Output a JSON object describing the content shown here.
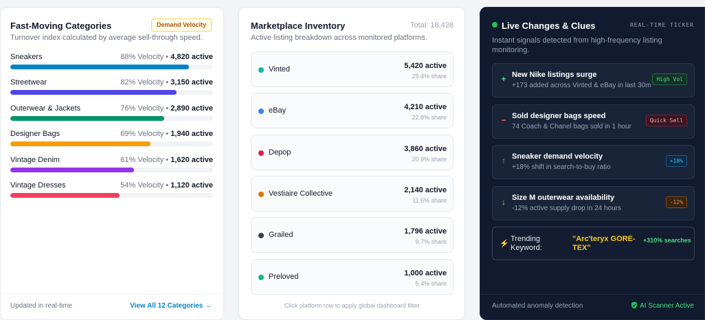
{
  "categories_card": {
    "title": "Fast-Moving Categories",
    "badge": "Demand Velocity",
    "subtitle": "Turnover index calculated by average sell-through speed.",
    "items": [
      {
        "name": "Sneakers",
        "velocity": "88% Velocity",
        "active": "4,820 active",
        "fill": 0.88,
        "color": "#0284c7"
      },
      {
        "name": "Streetwear",
        "velocity": "82% Velocity",
        "active": "3,150 active",
        "fill": 0.82,
        "color": "#4f46e5"
      },
      {
        "name": "Outerwear & Jackets",
        "velocity": "76% Velocity",
        "active": "2,890 active",
        "fill": 0.76,
        "color": "#059669"
      },
      {
        "name": "Designer Bags",
        "velocity": "69% Velocity",
        "active": "1,940 active",
        "fill": 0.69,
        "color": "#f59e0b"
      },
      {
        "name": "Vintage Denim",
        "velocity": "61% Velocity",
        "active": "1,620 active",
        "fill": 0.61,
        "color": "#9333ea"
      },
      {
        "name": "Vintage Dresses",
        "velocity": "54% Velocity",
        "active": "1,120 active",
        "fill": 0.54,
        "color": "#f43f5e"
      }
    ],
    "footer_left": "Updated in real-time",
    "footer_link": "View All 12 Categories →"
  },
  "inventory_card": {
    "title": "Marketplace Inventory",
    "total": "Total: 18,426",
    "subtitle": "Active listing breakdown across monitored platforms.",
    "platforms": [
      {
        "name": "Vinted",
        "active": "5,420 active",
        "share": "29.4% share",
        "color": "#14b8a6"
      },
      {
        "name": "eBay",
        "active": "4,210 active",
        "share": "22.8% share",
        "color": "#3b82f6"
      },
      {
        "name": "Depop",
        "active": "3,860 active",
        "share": "20.9% share",
        "color": "#e11d48"
      },
      {
        "name": "Vestiaire Collective",
        "active": "2,140 active",
        "share": "11.6% share",
        "color": "#d97706"
      },
      {
        "name": "Grailed",
        "active": "1,796 active",
        "share": "9.7% share",
        "color": "#374151"
      },
      {
        "name": "Preloved",
        "active": "1,000 active",
        "share": "5.4% share",
        "color": "#10b981"
      }
    ],
    "hint": "Click platform row to apply global dashboard filter"
  },
  "live_card": {
    "title": "Live Changes & Clues",
    "ticker": "REAL-TIME TICKER",
    "subtitle": "Instant signals detected from high-frequency listing monitoring.",
    "clues": [
      {
        "icon": "+",
        "icon_name": "plus-icon",
        "icon_color": "#4ade80",
        "title": "New Nike listings surge",
        "desc": "+173 added across Vinted & eBay in last 30m",
        "tag": "High Vol",
        "tag_color": "#4ade80",
        "tag_bg": "#143126",
        "tag_border": "#1f6b45"
      },
      {
        "icon": "−",
        "icon_name": "minus-icon",
        "icon_color": "#f87171",
        "title": "Sold designer bags speed",
        "desc": "74 Coach & Chanel bags sold in 1 hour",
        "tag": "Quick Sell",
        "tag_color": "#fda4af",
        "tag_bg": "#3a1622",
        "tag_border": "#7f1d36"
      },
      {
        "icon": "↑",
        "icon_name": "arrow-up-icon",
        "icon_color": "#38bdf8",
        "title": "Sneaker demand velocity",
        "desc": "+18% shift in search-to-buy ratio",
        "tag": "+18%",
        "tag_color": "#38bdf8",
        "tag_bg": "#0f2a44",
        "tag_border": "#1e5a8a"
      },
      {
        "icon": "↓",
        "icon_name": "arrow-down-icon",
        "icon_color": "#fbbf24",
        "title": "Size M outerwear availability",
        "desc": "-12% active supply drop in 24 hours",
        "tag": "-12%",
        "tag_color": "#fb923c",
        "tag_bg": "#3a2412",
        "tag_border": "#7c4a1a"
      }
    ],
    "trending": {
      "label": "Trending Keyword:",
      "keyword": "\"Arc'teryx GORE-TEX\"",
      "change": "+310% searches"
    },
    "footer_left": "Automated anomaly detection",
    "footer_right": "AI Scanner Active"
  }
}
